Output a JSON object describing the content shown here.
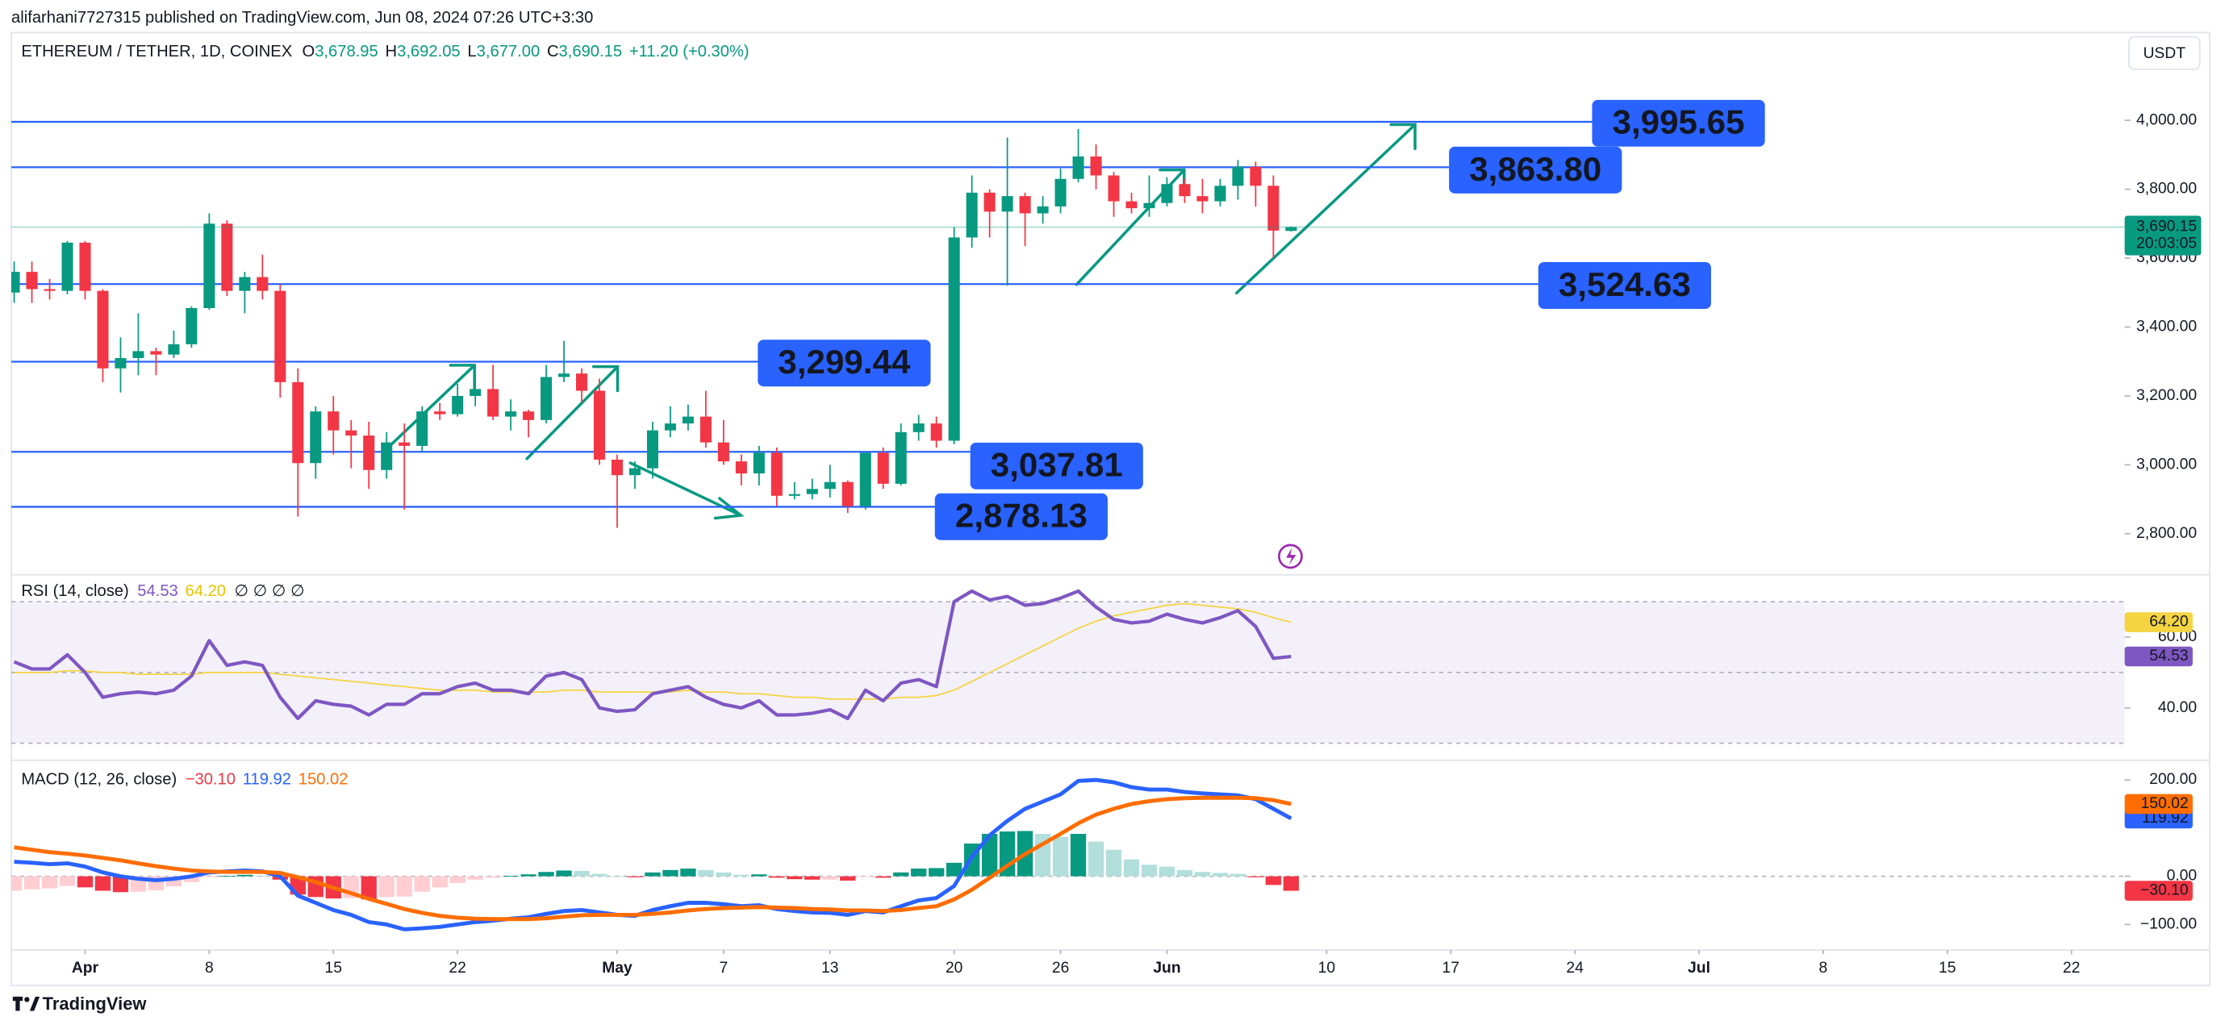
{
  "header": {
    "publisher": "alifarhani7727315 published on TradingView.com, Jun 08, 2024 07:26 UTC+3:30"
  },
  "chart_data": {
    "type": "candlestick",
    "symbol": "ETHEREUM / TETHER, 1D, COINEX",
    "ohlc_legend": [
      [
        "O",
        "3,678.95"
      ],
      [
        "H",
        "3,692.05"
      ],
      [
        "L",
        "3,677.00"
      ],
      [
        "C",
        "3,690.15"
      ]
    ],
    "change": "+11.20 (+0.30%)",
    "currency": "USDT",
    "x": [
      "03-28",
      "03-29",
      "03-30",
      "03-31",
      "04-01",
      "04-02",
      "04-03",
      "04-04",
      "04-05",
      "04-06",
      "04-07",
      "04-08",
      "04-09",
      "04-10",
      "04-11",
      "04-12",
      "04-13",
      "04-14",
      "04-15",
      "04-16",
      "04-17",
      "04-18",
      "04-19",
      "04-20",
      "04-21",
      "04-22",
      "04-23",
      "04-24",
      "04-25",
      "04-26",
      "04-27",
      "04-28",
      "04-29",
      "04-30",
      "05-01",
      "05-02",
      "05-03",
      "05-04",
      "05-05",
      "05-06",
      "05-07",
      "05-08",
      "05-09",
      "05-10",
      "05-11",
      "05-12",
      "05-13",
      "05-14",
      "05-15",
      "05-16",
      "05-17",
      "05-18",
      "05-19",
      "05-20",
      "05-21",
      "05-22",
      "05-23",
      "05-24",
      "05-25",
      "05-26",
      "05-27",
      "05-28",
      "05-29",
      "05-30",
      "05-31",
      "06-01",
      "06-02",
      "06-03",
      "06-04",
      "06-05",
      "06-06",
      "06-07",
      "06-08"
    ],
    "open": [
      3500,
      3560,
      3510,
      3505,
      3645,
      3505,
      3280,
      3310,
      3330,
      3320,
      3350,
      3455,
      3700,
      3505,
      3545,
      3505,
      3240,
      3005,
      3155,
      3100,
      3085,
      2985,
      3065,
      3055,
      3155,
      3147,
      3200,
      3220,
      3140,
      3155,
      3130,
      3255,
      3265,
      3215,
      3015,
      2970,
      2990,
      3100,
      3120,
      3140,
      3065,
      3010,
      2975,
      3035,
      2910,
      2915,
      2930,
      2950,
      2880,
      3035,
      2945,
      3095,
      3120,
      3070,
      3660,
      3790,
      3735,
      3780,
      3730,
      3750,
      3830,
      3895,
      3840,
      3765,
      3745,
      3760,
      3815,
      3780,
      3765,
      3810,
      3865,
      3810,
      3678.95
    ],
    "high": [
      3590,
      3590,
      3540,
      3650,
      3650,
      3510,
      3370,
      3440,
      3340,
      3390,
      3460,
      3730,
      3710,
      3560,
      3610,
      3525,
      3280,
      3170,
      3200,
      3130,
      3125,
      3095,
      3120,
      3170,
      3180,
      3235,
      3260,
      3290,
      3190,
      3160,
      3290,
      3360,
      3280,
      3250,
      3030,
      3010,
      3125,
      3170,
      3175,
      3215,
      3130,
      3030,
      3055,
      3050,
      2950,
      2960,
      3000,
      2955,
      3040,
      3050,
      3120,
      3145,
      3140,
      3690,
      3840,
      3800,
      3950,
      3790,
      3780,
      3860,
      3975,
      3930,
      3850,
      3790,
      3840,
      3835,
      3830,
      3830,
      3830,
      3885,
      3880,
      3840,
      3692.05
    ],
    "low": [
      3470,
      3470,
      3480,
      3495,
      3480,
      3240,
      3210,
      3260,
      3260,
      3310,
      3340,
      3450,
      3490,
      3440,
      3480,
      3195,
      2850,
      2960,
      3030,
      2990,
      2930,
      2960,
      2870,
      3040,
      3130,
      3140,
      3170,
      3130,
      3100,
      3080,
      3120,
      3240,
      3180,
      3000,
      2817,
      2930,
      2960,
      3080,
      3100,
      3050,
      3000,
      2940,
      2940,
      2880,
      2900,
      2900,
      2905,
      2860,
      2870,
      2930,
      2940,
      3070,
      3050,
      3060,
      3630,
      3660,
      3520,
      3635,
      3700,
      3730,
      3820,
      3800,
      3720,
      3730,
      3720,
      3750,
      3760,
      3730,
      3750,
      3770,
      3750,
      3600,
      3677
    ],
    "close": [
      3560,
      3510,
      3505,
      3645,
      3505,
      3280,
      3310,
      3330,
      3320,
      3350,
      3455,
      3700,
      3505,
      3545,
      3505,
      3240,
      3005,
      3155,
      3100,
      3085,
      2985,
      3065,
      3055,
      3155,
      3147,
      3200,
      3220,
      3140,
      3155,
      3130,
      3255,
      3265,
      3215,
      3015,
      2970,
      2990,
      3100,
      3120,
      3140,
      3065,
      3010,
      2975,
      3035,
      2910,
      2915,
      2930,
      2950,
      2880,
      3035,
      2945,
      3095,
      3120,
      3070,
      3660,
      3790,
      3735,
      3780,
      3730,
      3750,
      3830,
      3895,
      3840,
      3765,
      3745,
      3760,
      3815,
      3780,
      3765,
      3810,
      3865,
      3810,
      3680,
      3690.15
    ],
    "up_color": "#089981",
    "down_color": "#f23645",
    "xlim": [
      "03-28",
      "07-25"
    ],
    "xticks": [
      {
        "value": "04-01",
        "label": "Apr"
      },
      {
        "value": "04-08",
        "label": "8"
      },
      {
        "value": "04-15",
        "label": "15"
      },
      {
        "value": "04-22",
        "label": "22"
      },
      {
        "value": "05-01",
        "label": "May"
      },
      {
        "value": "05-07",
        "label": "7"
      },
      {
        "value": "05-13",
        "label": "13"
      },
      {
        "value": "05-20",
        "label": "20"
      },
      {
        "value": "05-26",
        "label": "26"
      },
      {
        "value": "06-01",
        "label": "Jun"
      },
      {
        "value": "06-10",
        "label": "10"
      },
      {
        "value": "06-17",
        "label": "17"
      },
      {
        "value": "06-24",
        "label": "24"
      },
      {
        "value": "07-01",
        "label": "Jul"
      },
      {
        "value": "07-08",
        "label": "8"
      },
      {
        "value": "07-15",
        "label": "15"
      },
      {
        "value": "07-22",
        "label": "22"
      }
    ],
    "ylim": [
      2689,
      4226
    ],
    "yticks": [
      {
        "value": 2800,
        "label": "2,800.00"
      },
      {
        "value": 3000,
        "label": "3,000.00"
      },
      {
        "value": 3200,
        "label": "3,200.00"
      },
      {
        "value": 3400,
        "label": "3,400.00"
      },
      {
        "value": 3600,
        "label": "3,600.00"
      },
      {
        "value": 3800,
        "label": "3,800.00"
      },
      {
        "value": 4000,
        "label": "4,000.00"
      }
    ],
    "levels": [
      {
        "value": 3995.65,
        "label": "3,995.65"
      },
      {
        "value": 3863.8,
        "label": "3,863.80"
      },
      {
        "value": 3524.63,
        "label": "3,524.63"
      },
      {
        "value": 3299.44,
        "label": "3,299.44"
      },
      {
        "value": 3037.81,
        "label": "3,037.81"
      },
      {
        "value": 2878.13,
        "label": "2,878.13"
      }
    ],
    "level_color": "#2962ff",
    "last_price_label": "3,690.15",
    "countdown": "20:03:05",
    "rsi": {
      "title": "RSI (14, close)",
      "placeholders": "∅ ∅ ∅ ∅",
      "ylim": [
        26,
        76.8
      ],
      "yticks": [
        {
          "value": 40,
          "label": "40.00"
        },
        {
          "value": 60,
          "label": "60.00"
        }
      ],
      "levels": [
        70,
        50,
        30
      ],
      "band_color": "#7e57c2",
      "series": [
        {
          "color": "#7e57c2",
          "last_label": "54.53",
          "values": [
            53,
            51,
            51,
            55,
            50,
            43,
            44,
            44.5,
            44,
            45,
            49,
            59,
            52,
            53,
            52,
            43,
            37,
            42,
            41,
            40.5,
            38,
            41,
            41,
            44,
            44,
            46,
            47,
            45,
            45,
            44,
            49,
            50,
            48,
            40,
            39,
            39.5,
            44,
            45,
            46,
            43,
            41,
            40,
            42,
            38,
            38,
            38.5,
            39.5,
            37,
            45,
            42,
            47,
            48,
            46,
            70,
            73,
            70.5,
            71.5,
            69,
            69.5,
            71,
            73,
            68.5,
            65,
            64,
            64.5,
            66.5,
            65,
            64,
            65.5,
            67.5,
            63,
            54,
            54.53
          ]
        },
        {
          "color": "#f5d442",
          "last_label": "64.20",
          "values": [
            50,
            50,
            50,
            50.5,
            50.5,
            50,
            50,
            49.5,
            49.5,
            49.5,
            49.5,
            50,
            50,
            50,
            50,
            49.5,
            49,
            48.5,
            48,
            47.5,
            47,
            46.5,
            46,
            45.5,
            45,
            45,
            45,
            44.5,
            44.5,
            44.5,
            44.5,
            45,
            45,
            44.5,
            44.5,
            44.5,
            44.5,
            44.5,
            45,
            44.5,
            44.5,
            44,
            44,
            43.5,
            43,
            43,
            42.5,
            42.5,
            42.5,
            42.5,
            43,
            43,
            43.5,
            45,
            47.5,
            50,
            52.5,
            55,
            57.5,
            60,
            62.5,
            64.5,
            66,
            67,
            68,
            69,
            69.5,
            69,
            68.5,
            68,
            67,
            65.5,
            64.2
          ]
        }
      ]
    },
    "macd": {
      "title": "MACD (12, 26, close)",
      "ylim": [
        -150,
        232
      ],
      "yticks": [
        {
          "value": -100,
          "label": "−100.00"
        },
        {
          "value": 0,
          "label": "0.00"
        },
        {
          "value": 200,
          "label": "200.00"
        }
      ],
      "levels": [
        0
      ],
      "histogram": {
        "last_label": "−30.10",
        "colors": [
          "#089981",
          "#b2dfdb",
          "#ffcdd2",
          "#f23645"
        ],
        "values": [
          -30,
          -27,
          -25,
          -20,
          -23,
          -30,
          -33,
          -32,
          -29,
          -21,
          -12,
          -2,
          1,
          3,
          1,
          -7,
          -38,
          -43,
          -46,
          -45,
          -48,
          -43,
          -42,
          -32,
          -23,
          -14,
          -7,
          -3,
          1,
          4,
          9,
          12,
          11,
          5,
          0,
          -2,
          8,
          13,
          16,
          13,
          8,
          3,
          4,
          -3,
          -6,
          -7,
          -7,
          -9,
          -1,
          -3,
          8,
          16,
          17,
          28,
          68,
          88,
          93,
          94,
          88,
          82,
          88,
          72,
          55,
          35,
          24,
          20,
          13,
          9,
          7,
          5,
          -2,
          -18,
          -30.1
        ]
      },
      "series": [
        {
          "color": "#2962ff",
          "last_label": "119.92",
          "values": [
            30,
            28,
            25,
            27,
            20,
            8,
            0,
            -5,
            -8,
            -5,
            0,
            8,
            10,
            12,
            10,
            0,
            -40,
            -55,
            -70,
            -80,
            -95,
            -100,
            -110,
            -108,
            -105,
            -100,
            -95,
            -92,
            -88,
            -85,
            -78,
            -72,
            -70,
            -75,
            -80,
            -82,
            -70,
            -62,
            -55,
            -55,
            -58,
            -62,
            -60,
            -68,
            -72,
            -75,
            -76,
            -80,
            -72,
            -75,
            -62,
            -50,
            -45,
            -20,
            40,
            85,
            115,
            140,
            155,
            170,
            198,
            200,
            195,
            185,
            180,
            180,
            175,
            172,
            170,
            168,
            160,
            140,
            119.92
          ]
        },
        {
          "color": "#ff6d00",
          "last_label": "150.02",
          "values": [
            60,
            55,
            50,
            47,
            43,
            38,
            33,
            27,
            21,
            16,
            12,
            10,
            9,
            9,
            9,
            7,
            -2,
            -12,
            -24,
            -35,
            -47,
            -57,
            -68,
            -76,
            -82,
            -86,
            -88,
            -89,
            -89,
            -89,
            -87,
            -84,
            -81,
            -80,
            -80,
            -80,
            -78,
            -75,
            -71,
            -68,
            -66,
            -65,
            -64,
            -65,
            -66,
            -68,
            -69,
            -71,
            -71,
            -72,
            -70,
            -66,
            -62,
            -48,
            -28,
            -3,
            22,
            46,
            67,
            88,
            110,
            128,
            140,
            150,
            156,
            160,
            162,
            163,
            163,
            163,
            162,
            158,
            150.02
          ]
        }
      ]
    }
  },
  "footer": {
    "brand": "TradingView"
  }
}
